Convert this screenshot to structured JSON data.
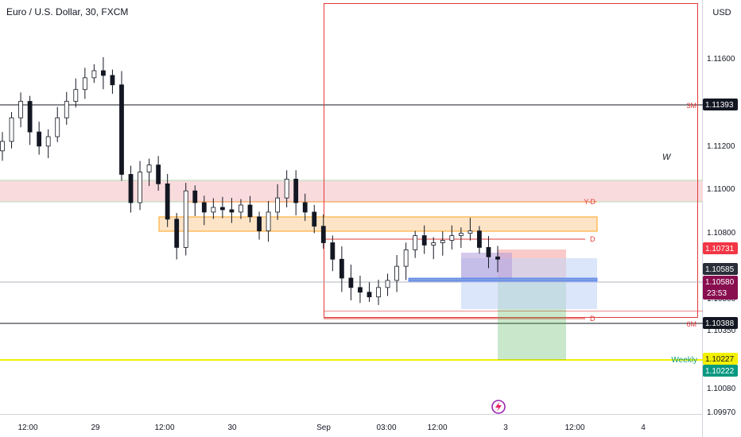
{
  "chart": {
    "title": "Euro / U.S. Dollar, 30, FXCM",
    "currency": "USD",
    "annotation_w": "W"
  },
  "colors": {
    "up": "#089981",
    "down": "#131722",
    "candle_body_up": "#ffffff",
    "monthly": "#e03a3a",
    "yd": "#f09234",
    "weekly": "#f3f000",
    "long_profit": "#4caf50",
    "long_loss": "#f27b7b",
    "short_zone": "#2962ff",
    "order_block": "#ff9800"
  },
  "chart_data": {
    "type": "candlestick",
    "title": "Euro / U.S. Dollar, 30, FXCM",
    "ylabel": "USD",
    "ylim": [
      1.0992,
      1.1168
    ],
    "y_ticks": [
      "1.11600",
      "1.11200",
      "1.11000",
      "1.10800",
      "1.10500",
      "1.10350",
      "1.10080",
      "1.09970"
    ],
    "x_ticks": [
      "12:00",
      "29",
      "12:00",
      "30",
      "Sep",
      "03:00",
      "12:00",
      "3",
      "12:00",
      "4"
    ],
    "price_labels": [
      {
        "value": "1.11393",
        "tag": "3M"
      },
      {
        "value": "1.10731",
        "tag": ""
      },
      {
        "value": "1.10585",
        "tag": ""
      },
      {
        "value": "1.10580",
        "tag": "23:53"
      },
      {
        "value": "1.10388",
        "tag": "6M"
      },
      {
        "value": "1.10227",
        "tag": "Weekly"
      },
      {
        "value": "1.10222",
        "tag": ""
      }
    ],
    "levels": [
      {
        "name": "3M",
        "value": 1.11393
      },
      {
        "name": "Y-D",
        "value": 1.1096
      },
      {
        "name": "D",
        "value": 1.1077
      },
      {
        "name": "D",
        "value": 1.104
      },
      {
        "name": "6M",
        "value": 1.10388
      },
      {
        "name": "Weekly",
        "value": 1.10227
      }
    ],
    "close_series": [
      1.1108,
      1.1118,
      1.1125,
      1.1112,
      1.1106,
      1.111,
      1.1118,
      1.1125,
      1.113,
      1.1135,
      1.1138,
      1.1136,
      1.1132,
      1.1094,
      1.1082,
      1.1095,
      1.1098,
      1.109,
      1.1075,
      1.1063,
      1.1087,
      1.1082,
      1.1078,
      1.108,
      1.1079,
      1.1078,
      1.1081,
      1.1076,
      1.107,
      1.1078,
      1.1084,
      1.1092,
      1.1082,
      1.1078,
      1.1072,
      1.1065,
      1.1058,
      1.105,
      1.1046,
      1.1044,
      1.1042,
      1.1046,
      1.1049,
      1.1055,
      1.1062,
      1.1068,
      1.1064,
      1.1065,
      1.1066,
      1.1068,
      1.1069,
      1.107,
      1.1063,
      1.1059,
      1.1058
    ]
  }
}
